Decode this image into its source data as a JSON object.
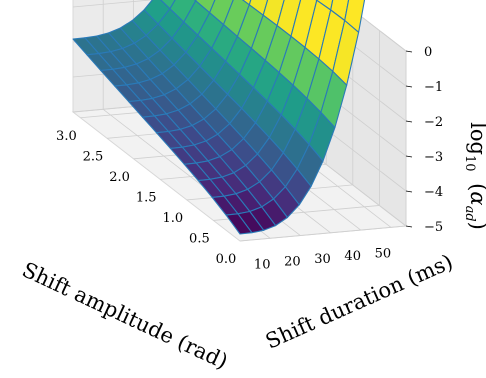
{
  "chart_data": {
    "type": "surface3d",
    "title": "",
    "xlabel": "Shift amplitude (rad)",
    "ylabel": "Shift duration (ms)",
    "zlabel_prefix": "log",
    "zlabel_sub": "10",
    "zlabel_var": "α",
    "zlabel_var_sub": "ad",
    "x_ticks": [
      "0.0",
      "0.5",
      "1.0",
      "1.5",
      "2.0",
      "2.5",
      "3.0"
    ],
    "y_ticks": [
      "10",
      "20",
      "30",
      "40",
      "50"
    ],
    "z_ticks": [
      "0",
      "−1",
      "−2",
      "−3",
      "−4",
      "−5"
    ],
    "xlim": [
      0.0,
      3.14
    ],
    "ylim": [
      0,
      55
    ],
    "zlim": [
      -5,
      0
    ],
    "grid": true,
    "colormap": "viridis",
    "surface_min_z": -4.8
  }
}
